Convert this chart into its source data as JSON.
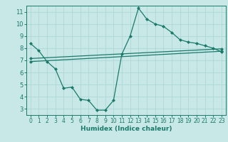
{
  "xlabel": "Humidex (Indice chaleur)",
  "bg_color": "#c8e8e8",
  "line_color": "#1a7a6a",
  "grid_color": "#b0d8d8",
  "xlim": [
    -0.5,
    23.5
  ],
  "ylim": [
    2.5,
    11.5
  ],
  "xticks": [
    0,
    1,
    2,
    3,
    4,
    5,
    6,
    7,
    8,
    9,
    10,
    11,
    12,
    13,
    14,
    15,
    16,
    17,
    18,
    19,
    20,
    21,
    22,
    23
  ],
  "yticks": [
    3,
    4,
    5,
    6,
    7,
    8,
    9,
    10,
    11
  ],
  "series1_x": [
    0,
    1,
    2,
    3,
    4,
    5,
    6,
    7,
    8,
    9,
    10,
    11,
    12,
    13,
    14,
    15,
    16,
    17,
    18,
    19,
    20,
    21,
    22,
    23
  ],
  "series1_y": [
    8.4,
    7.8,
    6.9,
    6.3,
    4.7,
    4.8,
    3.8,
    3.7,
    2.9,
    2.9,
    3.7,
    7.5,
    9.0,
    11.3,
    10.4,
    10.0,
    9.8,
    9.3,
    8.7,
    8.5,
    8.4,
    8.2,
    8.0,
    7.7
  ],
  "series2_x": [
    0,
    23
  ],
  "series2_y": [
    7.15,
    7.95
  ],
  "series3_x": [
    0,
    23
  ],
  "series3_y": [
    6.9,
    7.75
  ]
}
